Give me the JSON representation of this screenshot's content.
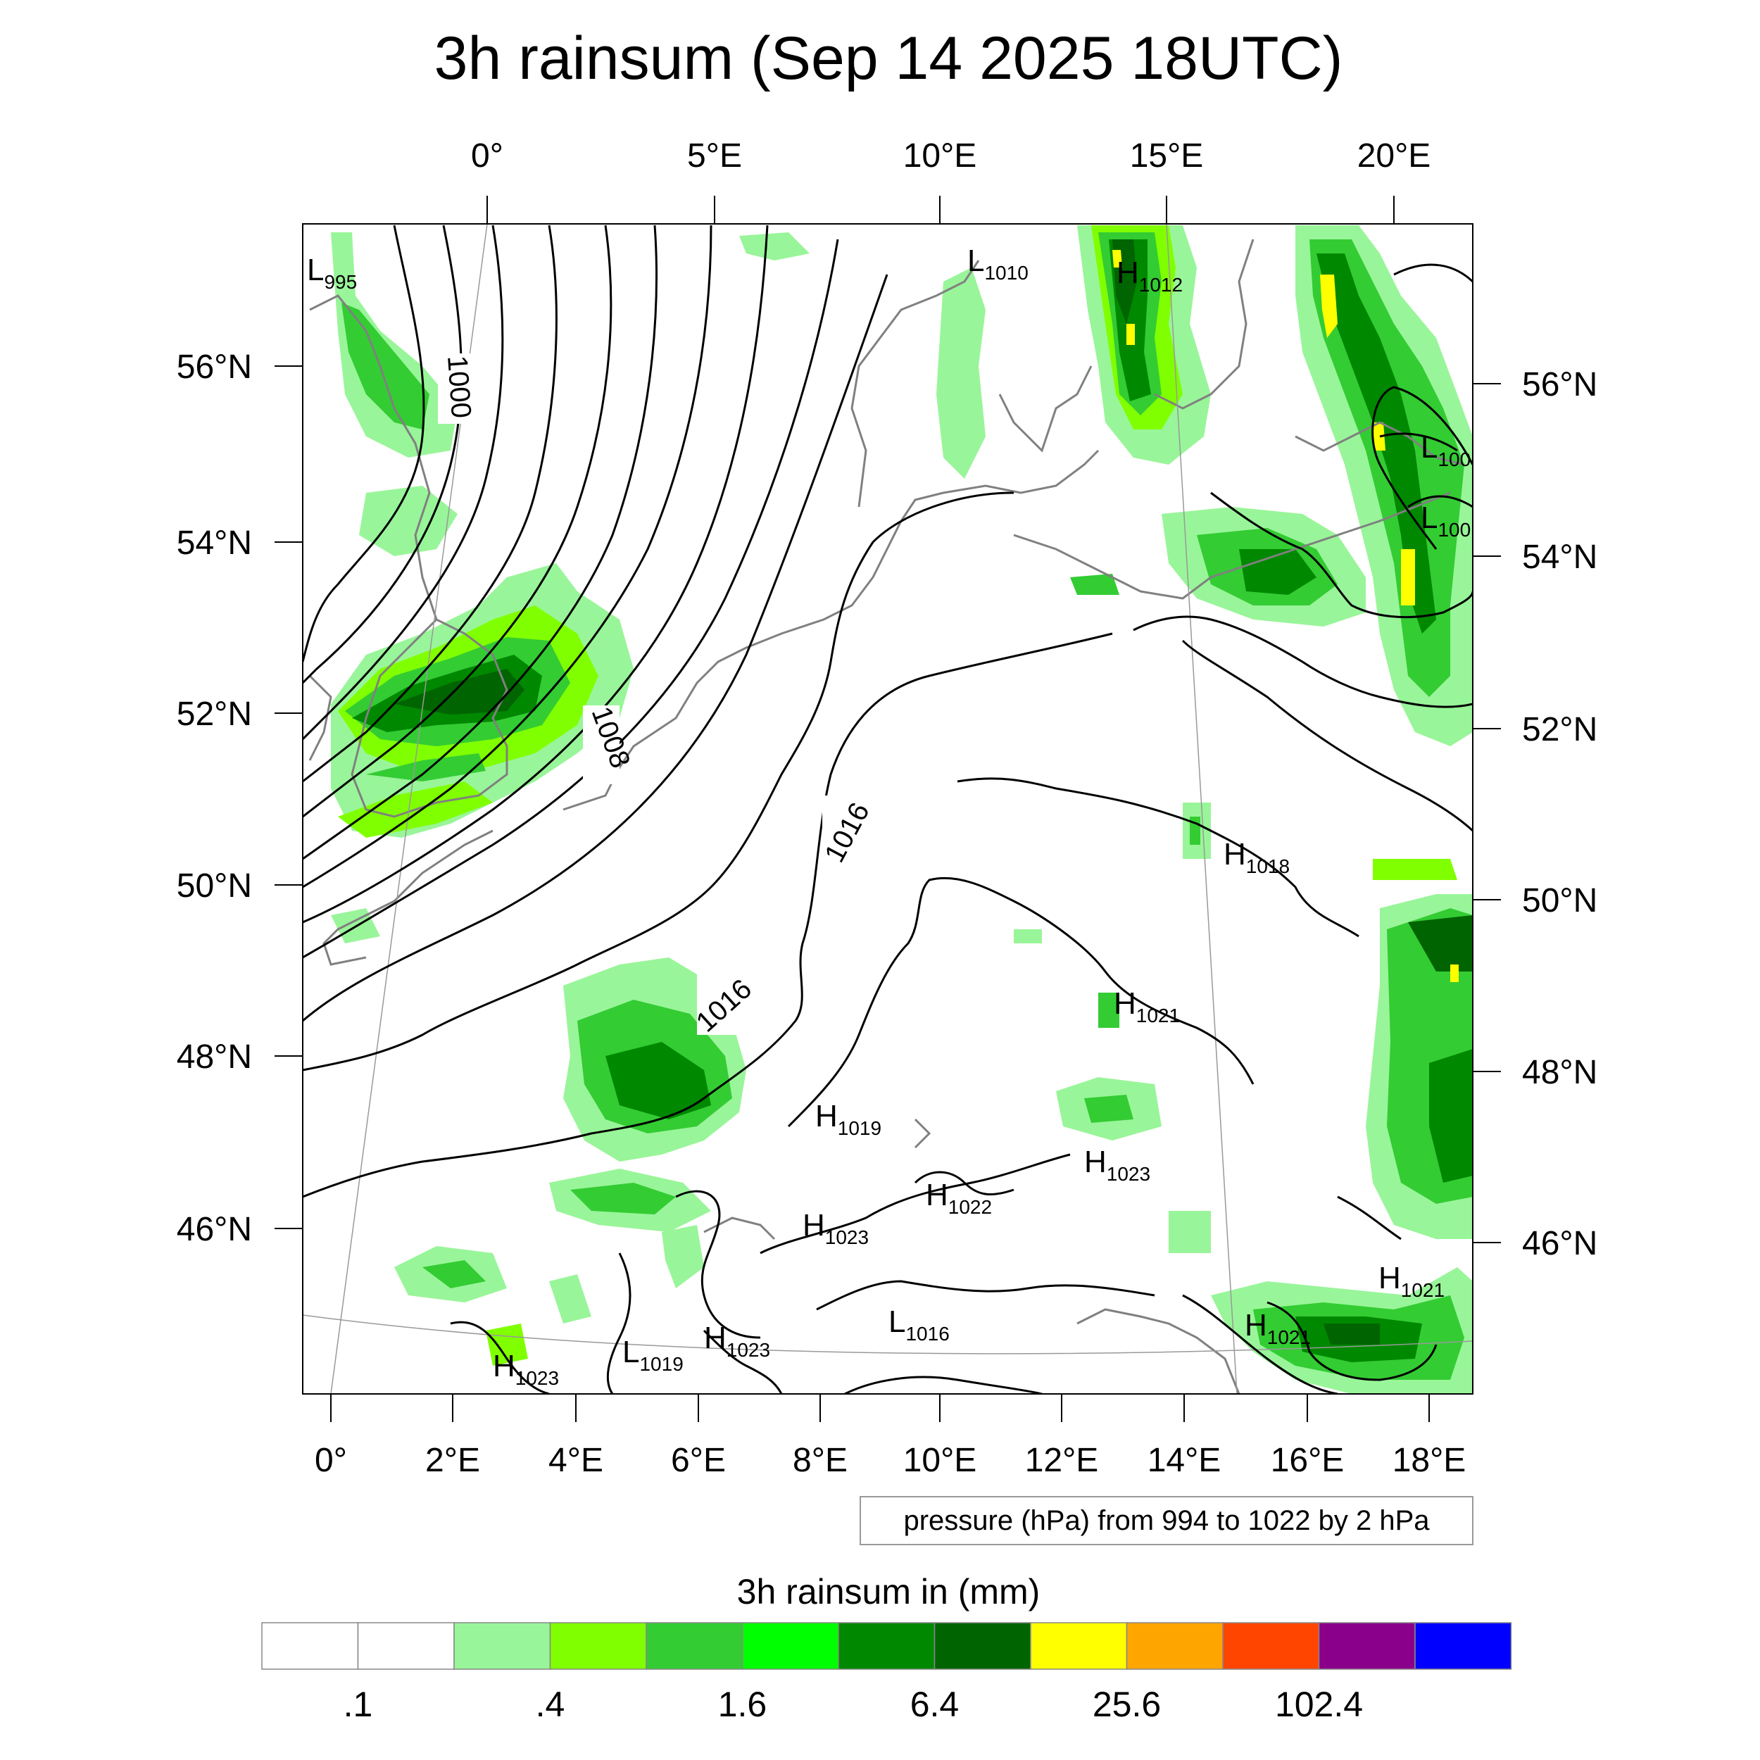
{
  "title": "3h rainsum (Sep 14 2025 18UTC)",
  "top_lon_labels": [
    "0°",
    "5°E",
    "10°E",
    "15°E",
    "20°E"
  ],
  "bottom_lon_labels": [
    "0°",
    "2°E",
    "4°E",
    "6°E",
    "8°E",
    "10°E",
    "12°E",
    "14°E",
    "16°E",
    "18°E"
  ],
  "left_lat_labels": [
    "56°N",
    "54°N",
    "52°N",
    "50°N",
    "48°N",
    "46°N"
  ],
  "right_lat_labels": [
    "56°N",
    "54°N",
    "52°N",
    "50°N",
    "48°N",
    "46°N"
  ],
  "contour_note": "pressure (hPa) from 994 to 1022 by 2 hPa",
  "colorbar": {
    "title": "3h rainsum in (mm)",
    "colors": [
      "#ffffff",
      "#ffffff",
      "#99f599",
      "#80ff00",
      "#33cc33",
      "#00ff00",
      "#008800",
      "#006400",
      "#ffff00",
      "#ffa500",
      "#ff4500",
      "#8b008b",
      "#0000ff"
    ],
    "tick_labels": [
      ".1",
      ".4",
      "1.6",
      "6.4",
      "25.6",
      "102.4"
    ]
  },
  "isobar_labels": [
    "1000",
    "1008",
    "1016",
    "1016"
  ],
  "pressure_centers": [
    {
      "type": "L",
      "value": "995"
    },
    {
      "type": "L",
      "value": "1010"
    },
    {
      "type": "H",
      "value": "1012"
    },
    {
      "type": "L",
      "value": "100"
    },
    {
      "type": "L",
      "value": "100"
    },
    {
      "type": "H",
      "value": "1018"
    },
    {
      "type": "H",
      "value": "1021"
    },
    {
      "type": "H",
      "value": "1019"
    },
    {
      "type": "H",
      "value": "1023"
    },
    {
      "type": "H",
      "value": "1022"
    },
    {
      "type": "H",
      "value": "1023"
    },
    {
      "type": "H",
      "value": "1023"
    },
    {
      "type": "L",
      "value": "1019"
    },
    {
      "type": "L",
      "value": "1016"
    },
    {
      "type": "H",
      "value": "1021"
    },
    {
      "type": "H",
      "value": "1021"
    },
    {
      "type": "H",
      "value": "1023"
    }
  ]
}
